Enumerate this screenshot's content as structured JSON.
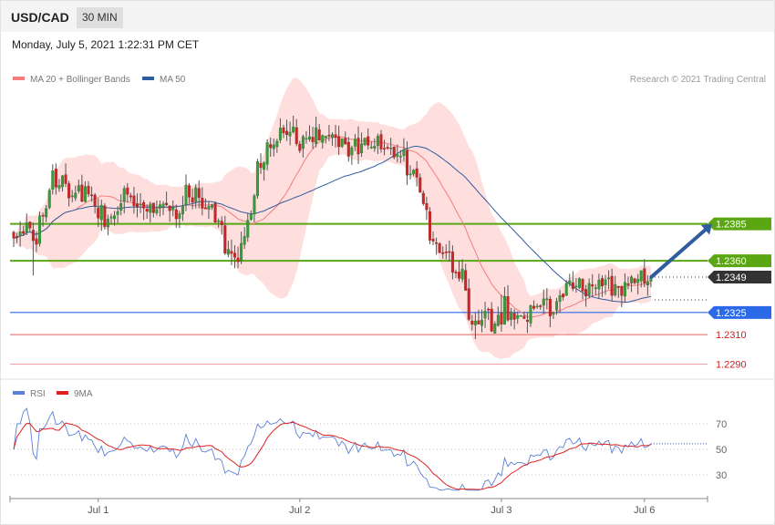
{
  "header": {
    "symbol": "USD/CAD",
    "timeframe": "30 MIN",
    "datetime": "Monday, July 5, 2021 1:22:31 PM CET"
  },
  "legend": {
    "ma20": {
      "label": "MA 20 + Bollinger Bands",
      "color": "#f47c7c"
    },
    "ma50": {
      "label": "MA 50",
      "color": "#2f5d9e"
    }
  },
  "copyright": "Research © 2021 Trading Central",
  "rsi_legend": {
    "rsi": {
      "label": "RSI",
      "color": "#5b80d6"
    },
    "ma9": {
      "label": "9MA",
      "color": "#e02020"
    }
  },
  "x_labels": [
    {
      "label": "Jul 1",
      "index": 26
    },
    {
      "label": "Jul 2",
      "index": 88
    },
    {
      "label": "Jul 3",
      "index": 150
    },
    {
      "label": "Jul 6",
      "index": 194
    }
  ],
  "chart_data": [
    {
      "type": "candlestick",
      "instrument": "USD/CAD",
      "timeframe": "30 MIN",
      "ylim": [
        1.2286,
        1.2448
      ],
      "levels": [
        {
          "value": 1.2385,
          "label": "1.2385",
          "type": "resistance",
          "color": "#5aa613"
        },
        {
          "value": 1.236,
          "label": "1.2360",
          "type": "resistance",
          "color": "#5aa613"
        },
        {
          "value": 1.2349,
          "label": "1.2349",
          "type": "last-price",
          "color": "#333333"
        },
        {
          "value": 1.2325,
          "label": "1.2325",
          "type": "pivot",
          "color": "#2a6ae8"
        },
        {
          "value": 1.231,
          "label": "1.2310",
          "type": "support",
          "color": "#e06060"
        },
        {
          "value": 1.229,
          "label": "1.2290",
          "type": "support",
          "color": "#f0a0a0"
        }
      ],
      "arrow": {
        "from_index": 195,
        "from_value": 1.2349,
        "to_index": 212,
        "to_value": 1.2385
      },
      "anchors": [
        [
          0,
          1.237
        ],
        [
          4,
          1.2386
        ],
        [
          7,
          1.2369
        ],
        [
          10,
          1.2405
        ],
        [
          14,
          1.2419
        ],
        [
          18,
          1.2403
        ],
        [
          22,
          1.241
        ],
        [
          26,
          1.2393
        ],
        [
          30,
          1.2385
        ],
        [
          34,
          1.2408
        ],
        [
          38,
          1.2398
        ],
        [
          42,
          1.2391
        ],
        [
          46,
          1.24
        ],
        [
          50,
          1.2384
        ],
        [
          54,
          1.2409
        ],
        [
          58,
          1.2404
        ],
        [
          62,
          1.239
        ],
        [
          64,
          1.2375
        ],
        [
          66,
          1.2367
        ],
        [
          68,
          1.2365
        ],
        [
          70,
          1.2372
        ],
        [
          72,
          1.2385
        ],
        [
          74,
          1.2409
        ],
        [
          76,
          1.2427
        ],
        [
          80,
          1.2437
        ],
        [
          84,
          1.2446
        ],
        [
          88,
          1.2443
        ],
        [
          92,
          1.2443
        ],
        [
          96,
          1.2444
        ],
        [
          100,
          1.2441
        ],
        [
          104,
          1.2436
        ],
        [
          108,
          1.2439
        ],
        [
          112,
          1.2444
        ],
        [
          114,
          1.2437
        ],
        [
          117,
          1.2433
        ],
        [
          120,
          1.243
        ],
        [
          124,
          1.2416
        ],
        [
          127,
          1.2387
        ],
        [
          129,
          1.2374
        ],
        [
          131,
          1.237
        ],
        [
          133,
          1.2363
        ],
        [
          135,
          1.2354
        ],
        [
          138,
          1.2346
        ],
        [
          141,
          1.2318
        ],
        [
          144,
          1.232
        ],
        [
          148,
          1.2322
        ],
        [
          150,
          1.2317
        ],
        [
          151,
          1.2334
        ],
        [
          152,
          1.2322
        ],
        [
          156,
          1.232
        ],
        [
          160,
          1.2327
        ],
        [
          164,
          1.233
        ],
        [
          168,
          1.2336
        ],
        [
          172,
          1.2343
        ],
        [
          176,
          1.234
        ],
        [
          180,
          1.2347
        ],
        [
          184,
          1.2344
        ],
        [
          188,
          1.2343
        ],
        [
          192,
          1.2346
        ],
        [
          194,
          1.2349
        ]
      ],
      "rsi": {
        "ylim": [
          15,
          85
        ],
        "levels": [
          {
            "value": 70,
            "label": "70"
          },
          {
            "value": 50,
            "label": "50"
          },
          {
            "value": 30,
            "label": "30"
          }
        ]
      }
    }
  ]
}
